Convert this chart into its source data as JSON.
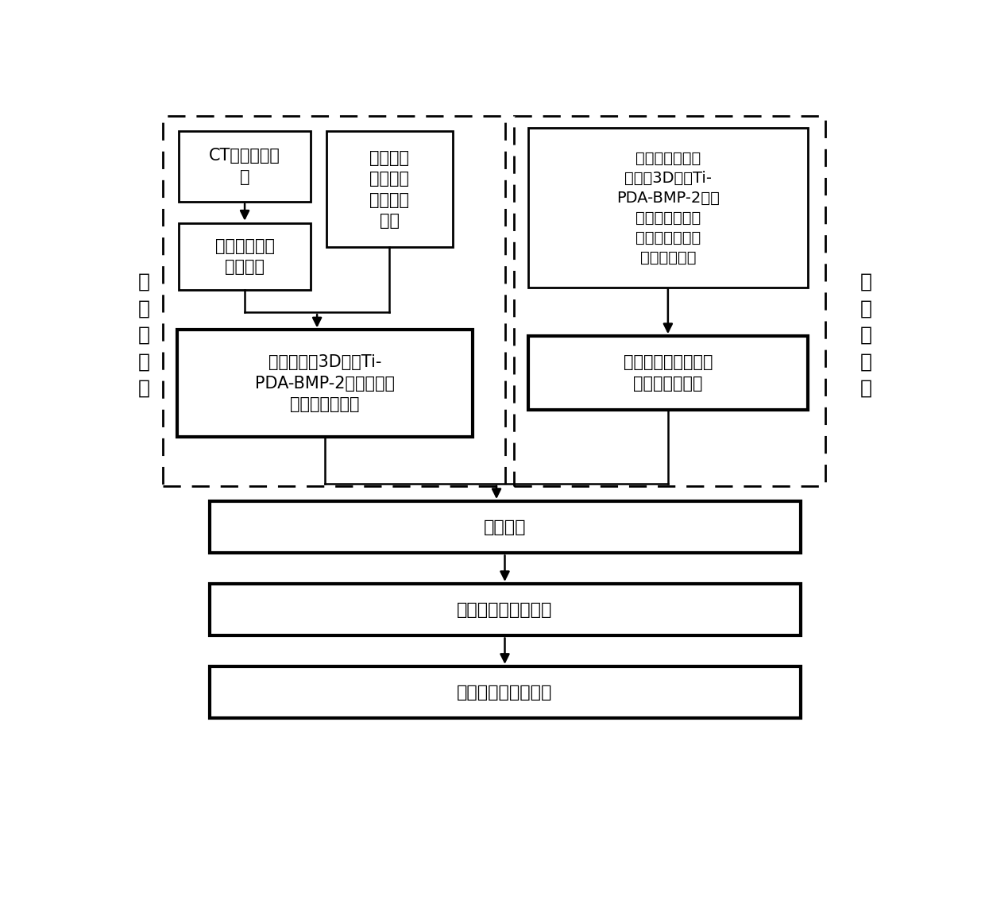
{
  "bg_color": "#ffffff",
  "fig_w": 12.4,
  "fig_h": 11.52,
  "dpi": 100,
  "left_label": "个\n性\n化\n支\n架",
  "right_label": "通\n用\n化\n支\n架",
  "ct_text": "CT扫描缺损部\n位",
  "eval_text": "综合评价\n骨缺损的\n病情严重\n程度",
  "soft_text": "软件设计所需\n支架形状",
  "make_text": "制作若干通用化\n梯度化3D打印Ti-\nPDA-BMP-2（固\n定的力学强度、\n规则的外形、微\n结构、成分）",
  "design_text": "设计梯度化3D打印Ti-\nPDA-BMP-2支架（支架\n外形、微结构）",
  "select_text": "根据病情选择使用支\n架的大小与数量",
  "implant_text": "支架植入",
  "ingrow_text": "支架内外骨组织长入",
  "repair_text": "最终实现骨缺损修复"
}
